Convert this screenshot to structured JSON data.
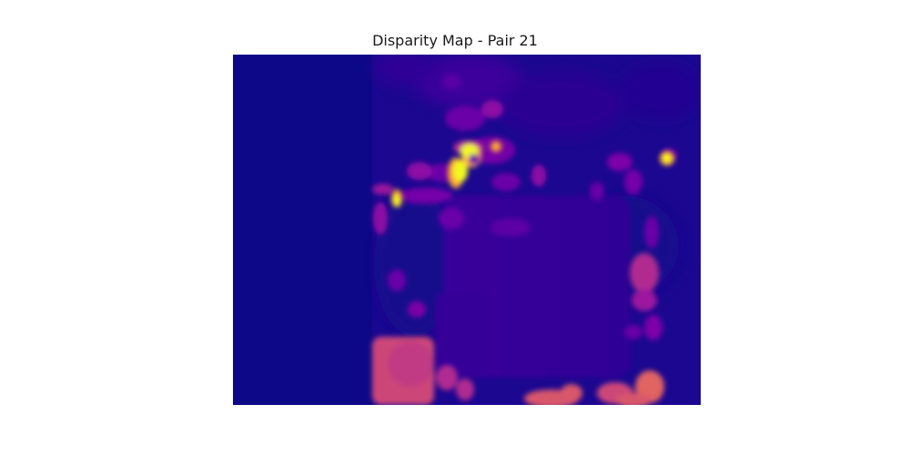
{
  "figure": {
    "title": "Disparity Map - Pair 21"
  },
  "image": {
    "subject": "disparity map",
    "colormap": "plasma",
    "colors": {
      "background": "#0d0887",
      "low": "#2a0593",
      "mid_low": "#41049d",
      "mid": "#6a00a8",
      "mid_high": "#8f0da4",
      "high": "#b12a90",
      "warm": "#cc4778",
      "hot": "#e16462",
      "peak": "#fca636",
      "max": "#f0f921"
    }
  }
}
